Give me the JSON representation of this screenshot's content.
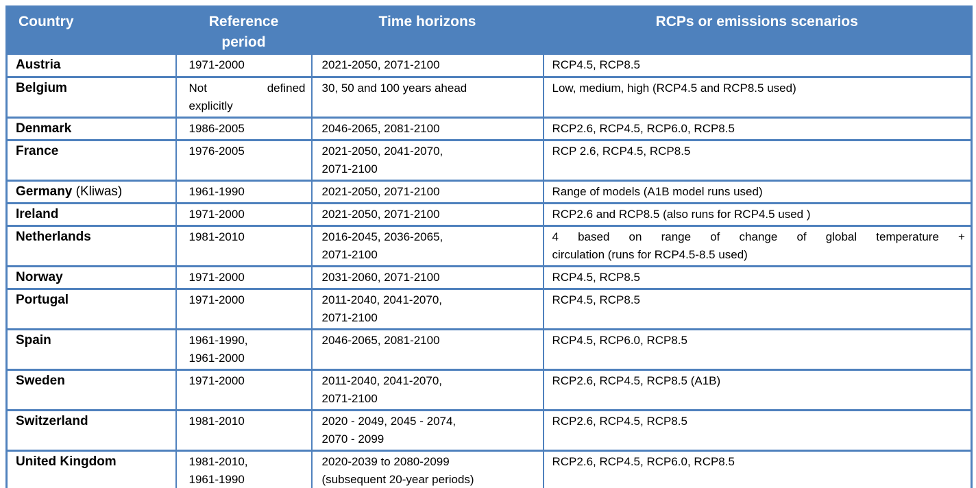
{
  "colors": {
    "header_bg": "#4e81bd",
    "border": "#4f81bd",
    "header_text": "#ffffff",
    "body_text": "#000000"
  },
  "table": {
    "headers": {
      "country": "Country",
      "reference": "Reference\nperiod",
      "horizons": "Time horizons",
      "rcps": "RCPs or emissions scenarios"
    },
    "rows": [
      {
        "country": "Austria",
        "note": "",
        "reference": "1971-2000",
        "horizons": "2021-2050, 2071-2100",
        "rcps": "RCP4.5, RCP8.5",
        "justify": []
      },
      {
        "country": "Belgium",
        "note": "",
        "reference": "Not defined\nexplicitly",
        "horizons": "30, 50 and 100 years ahead",
        "rcps": "Low, medium, high (RCP4.5 and RCP8.5 used)",
        "justify": [
          "reference"
        ]
      },
      {
        "country": "Denmark",
        "note": "",
        "reference": "1986-2005",
        "horizons": "2046-2065, 2081-2100",
        "rcps": "RCP2.6, RCP4.5, RCP6.0, RCP8.5",
        "justify": []
      },
      {
        "country": "France",
        "note": "",
        "reference": "1976-2005",
        "horizons": "2021-2050, 2041-2070,\n2071-2100",
        "rcps": "RCP 2.6, RCP4.5, RCP8.5",
        "justify": []
      },
      {
        "country": "Germany",
        "note": " (Kliwas)",
        "reference": "1961-1990",
        "horizons": "2021-2050, 2071-2100",
        "rcps": "Range of models (A1B model runs used)",
        "justify": []
      },
      {
        "country": "Ireland",
        "note": "",
        "reference": "1971-2000",
        "horizons": "2021-2050, 2071-2100",
        "rcps": "RCP2.6 and RCP8.5 (also runs for RCP4.5 used )",
        "justify": []
      },
      {
        "country": "Netherlands",
        "note": "",
        "reference": "1981-2010",
        "horizons": "2016-2045, 2036-2065,\n2071-2100",
        "rcps": "4 based on range of change of global temperature +\ncirculation (runs for RCP4.5-8.5 used)",
        "justify": [
          "rcps"
        ]
      },
      {
        "country": "Norway",
        "note": "",
        "reference": "1971-2000",
        "horizons": "2031-2060, 2071-2100",
        "rcps": "RCP4.5, RCP8.5",
        "justify": []
      },
      {
        "country": "Portugal",
        "note": "",
        "reference": "1971-2000",
        "horizons": "2011-2040, 2041-2070,\n2071-2100",
        "rcps": "RCP4.5, RCP8.5",
        "justify": []
      },
      {
        "country": "Spain",
        "note": "",
        "reference": "1961-1990,\n1961-2000",
        "horizons": "2046-2065, 2081-2100",
        "rcps": "RCP4.5, RCP6.0, RCP8.5",
        "justify": []
      },
      {
        "country": "Sweden",
        "note": "",
        "reference": "1971-2000",
        "horizons": "2011-2040, 2041-2070,\n2071-2100",
        "rcps": "RCP2.6, RCP4.5, RCP8.5 (A1B)",
        "justify": []
      },
      {
        "country": "Switzerland",
        "note": "",
        "reference": "1981-2010",
        "horizons": "2020 - 2049, 2045 - 2074,\n2070 - 2099",
        "rcps": "RCP2.6, RCP4.5, RCP8.5",
        "justify": []
      },
      {
        "country": "United Kingdom",
        "note": "",
        "reference": "1981-2010,\n1961-1990",
        "horizons": "2020-2039 to 2080-2099\n(subsequent 20-year periods)",
        "rcps": "RCP2.6, RCP4.5, RCP6.0, RCP8.5",
        "justify": []
      }
    ]
  }
}
